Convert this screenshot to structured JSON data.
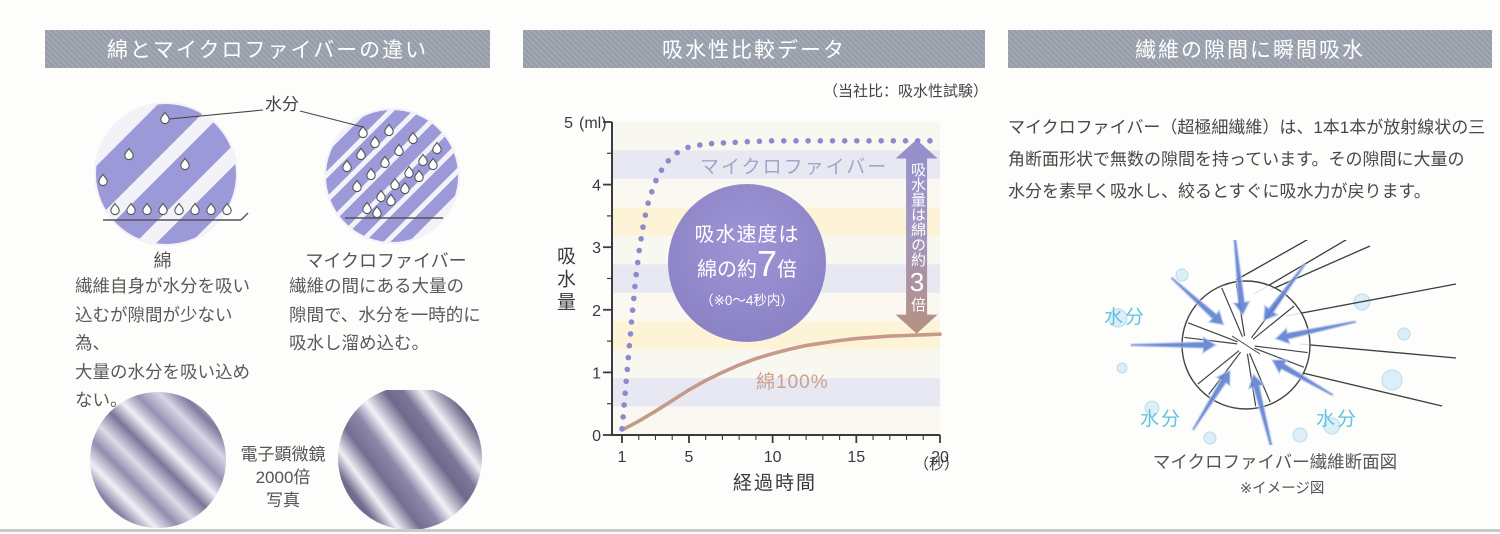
{
  "colors": {
    "header_bg": "#9ca2ad",
    "header_text": "#ffffff",
    "fiber_stripe": "#9b99d8",
    "microfiber_series": "#8d89cc",
    "cotton_series": "#c59a89",
    "speed_circle_bg": "#9189cb",
    "arrow_gradient_top": "#8d89c9",
    "arrow_gradient_bottom": "#b08a77",
    "moisture_text": "#5fc4de",
    "water_arrow_blue": "#5f7fd2"
  },
  "panels": {
    "left": {
      "header": "綿とマイクロファイバーの違い",
      "moisture_label": "水分",
      "cotton": {
        "title": "綿",
        "description": "繊維自身が水分を吸い\n込むが隙間が少ない為、\n大量の水分を吸い込め\nない。"
      },
      "microfiber": {
        "title": "マイクロファイバー",
        "description": "繊維の間にある大量の\n隙間で、水分を一時的に\n吸水し溜め込む。"
      },
      "micrograph_caption": "電子顕微鏡\n2000倍\n写真"
    },
    "center": {
      "header": "吸水性比較データ",
      "subtitle": "（当社比：吸水性試験）",
      "speed_note": {
        "line1": "吸水速度は",
        "pre": "綿の約",
        "big": "7",
        "post": "倍",
        "paren": "（※0〜4秒内）"
      },
      "amount_note": {
        "pre": "吸水量は綿の約",
        "big": "3",
        "post": "倍"
      }
    },
    "right": {
      "header": "繊維の隙間に瞬間吸水",
      "paragraph": "マイクロファイバー（超極細繊維）は、1本1本が放射線状の三\n角断面形状で無数の隙間を持っています。その隙間に大量の\n水分を素早く吸水し、絞るとすぐに吸水力が戻ります。",
      "moisture_label": "水分",
      "caption": "マイクロファイバー繊維断面図",
      "caption_note": "※イメージ図"
    }
  },
  "chart_data": {
    "type": "line",
    "title": "吸水性比較データ",
    "xlabel": "経過時間",
    "x_unit": "（秒）",
    "ylabel": "吸水量",
    "y_unit": "(ml)",
    "xlim": [
      1,
      20
    ],
    "ylim": [
      0,
      5
    ],
    "x_ticks": [
      1,
      5,
      10,
      15,
      20
    ],
    "y_ticks": [
      0,
      1,
      2,
      3,
      4,
      5
    ],
    "grid": "striped-background",
    "legend_position": "inline-labels",
    "series": [
      {
        "name": "マイクロファイバー",
        "style": "dotted",
        "color": "#8d89cc",
        "x": [
          1,
          1.2,
          1.4,
          1.6,
          1.8,
          2,
          2.3,
          2.6,
          3,
          3.5,
          4,
          4.5,
          5,
          6,
          8,
          10,
          12,
          14,
          16,
          18,
          20
        ],
        "y": [
          0.1,
          0.7,
          1.3,
          1.9,
          2.45,
          2.9,
          3.4,
          3.75,
          4.05,
          4.3,
          4.45,
          4.55,
          4.6,
          4.65,
          4.68,
          4.7,
          4.7,
          4.7,
          4.7,
          4.7,
          4.7
        ]
      },
      {
        "name": "綿100%",
        "style": "solid",
        "color": "#c59a89",
        "x": [
          1,
          2,
          3,
          4,
          5,
          6,
          7,
          8,
          9,
          10,
          11,
          12,
          13,
          14,
          15,
          16,
          17,
          18,
          19,
          20
        ],
        "y": [
          0.08,
          0.22,
          0.38,
          0.55,
          0.72,
          0.87,
          1.0,
          1.12,
          1.22,
          1.3,
          1.37,
          1.43,
          1.47,
          1.51,
          1.54,
          1.56,
          1.58,
          1.59,
          1.6,
          1.61
        ]
      }
    ],
    "annotations": [
      {
        "type": "circle-badge",
        "text": "吸水速度は綿の約7倍（※0〜4秒内）",
        "x": 8,
        "y": 2.8
      },
      {
        "type": "double-arrow",
        "text": "吸水量は綿の約3倍",
        "x": 18.6,
        "y_from": 1.62,
        "y_to": 4.72
      }
    ]
  }
}
